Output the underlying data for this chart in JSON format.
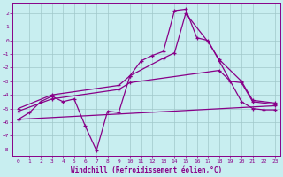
{
  "xlabel": "Windchill (Refroidissement éolien,°C)",
  "xlim": [
    -0.5,
    23.5
  ],
  "ylim": [
    -8.5,
    2.8
  ],
  "yticks": [
    2,
    1,
    0,
    -1,
    -2,
    -3,
    -4,
    -5,
    -6,
    -7,
    -8
  ],
  "xticks": [
    0,
    1,
    2,
    3,
    4,
    5,
    6,
    7,
    8,
    9,
    10,
    11,
    12,
    13,
    14,
    15,
    16,
    17,
    18,
    19,
    20,
    21,
    22,
    23
  ],
  "bg_color": "#c8eef0",
  "line_color": "#880088",
  "grid_color": "#a0c8ca",
  "curve1_x": [
    0,
    1,
    2,
    3,
    4,
    5,
    6,
    7,
    8,
    9,
    10,
    11,
    12,
    13,
    14,
    15,
    16,
    17,
    18,
    20,
    21,
    22,
    23
  ],
  "curve1_y": [
    -5.8,
    -5.3,
    -4.5,
    -4.1,
    -4.5,
    -4.3,
    -6.3,
    -8.1,
    -5.2,
    -5.3,
    -2.6,
    -1.5,
    -1.1,
    -0.8,
    2.2,
    2.3,
    0.2,
    0.0,
    -1.5,
    -4.5,
    -5.0,
    -5.1,
    -5.1
  ],
  "curve2_x": [
    0,
    3,
    9,
    10,
    13,
    14,
    15,
    17,
    18,
    20,
    21,
    23
  ],
  "curve2_y": [
    -5.0,
    -4.0,
    -3.3,
    -2.6,
    -1.3,
    -0.9,
    2.0,
    -0.1,
    -1.4,
    -3.0,
    -4.4,
    -4.6
  ],
  "curve3_x": [
    0,
    3,
    9,
    10,
    18,
    19,
    20,
    21,
    23
  ],
  "curve3_y": [
    -5.2,
    -4.3,
    -3.6,
    -3.1,
    -2.2,
    -3.0,
    -3.1,
    -4.5,
    -4.7
  ],
  "curve4_x": [
    0,
    23
  ],
  "curve4_y": [
    -5.8,
    -4.8
  ]
}
